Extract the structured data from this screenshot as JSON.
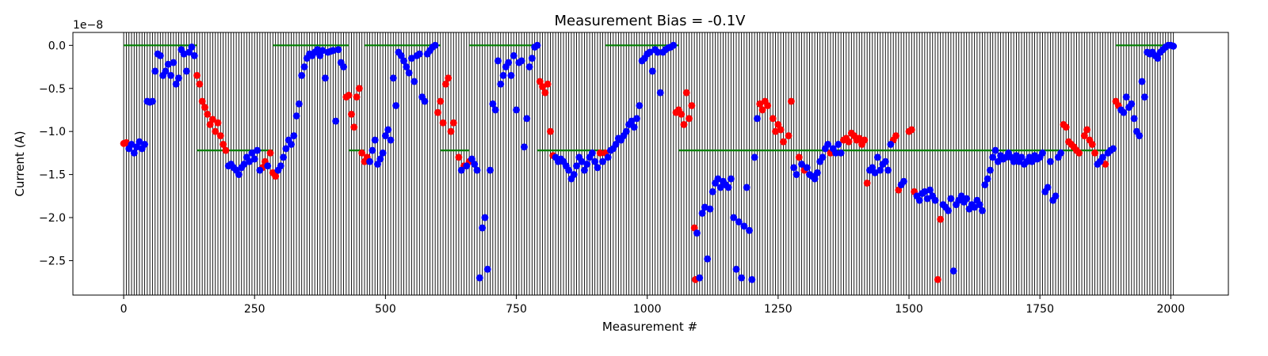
{
  "chart_data": {
    "type": "scatter",
    "title": "Measurement Bias = -0.1V",
    "xlabel": "Measurement #",
    "ylabel": "Current (A)",
    "y_offset_label": "1e−8",
    "xlim": [
      -97,
      2110
    ],
    "ylim": [
      -2.9,
      0.15
    ],
    "x_ticks": [
      0,
      250,
      500,
      750,
      1000,
      1250,
      1500,
      1750,
      2000
    ],
    "y_ticks": [
      0.0,
      -0.5,
      -1.0,
      -1.5,
      -2.0,
      -2.5
    ],
    "x_tick_labels": [
      "0",
      "250",
      "500",
      "750",
      "1000",
      "1250",
      "1500",
      "1750",
      "2000"
    ],
    "y_tick_labels": [
      "0.0",
      "−0.5",
      "−1.0",
      "−1.5",
      "−2.0",
      "−2.5"
    ],
    "vertical_lines": {
      "start": 0,
      "end": 2005,
      "step": 5,
      "color": "#000000"
    },
    "colors": {
      "red": "#ff0000",
      "blue": "#0000ff",
      "green": "#008000"
    },
    "green_segments": [
      {
        "x": [
          0,
          140
        ],
        "y": 0.0
      },
      {
        "x": [
          140,
          285
        ],
        "y": -1.22
      },
      {
        "x": [
          285,
          430
        ],
        "y": 0.0
      },
      {
        "x": [
          430,
          460
        ],
        "y": -1.22
      },
      {
        "x": [
          460,
          605
        ],
        "y": 0.0
      },
      {
        "x": [
          605,
          660
        ],
        "y": -1.22
      },
      {
        "x": [
          660,
          790
        ],
        "y": 0.0
      },
      {
        "x": [
          790,
          920
        ],
        "y": -1.22
      },
      {
        "x": [
          920,
          1060
        ],
        "y": 0.0
      },
      {
        "x": [
          1060,
          1895
        ],
        "y": -1.22
      },
      {
        "x": [
          1895,
          2000
        ],
        "y": 0.0
      }
    ],
    "red_points": [
      [
        0,
        -1.14
      ],
      [
        5,
        -1.13
      ],
      [
        10,
        -1.16
      ],
      [
        140,
        -0.35
      ],
      [
        145,
        -0.45
      ],
      [
        150,
        -0.65
      ],
      [
        155,
        -0.72
      ],
      [
        160,
        -0.8
      ],
      [
        165,
        -0.92
      ],
      [
        170,
        -0.86
      ],
      [
        175,
        -1.0
      ],
      [
        180,
        -0.9
      ],
      [
        185,
        -1.05
      ],
      [
        190,
        -1.15
      ],
      [
        195,
        -1.22
      ],
      [
        265,
        -1.42
      ],
      [
        270,
        -1.35
      ],
      [
        280,
        -1.25
      ],
      [
        285,
        -1.48
      ],
      [
        290,
        -1.52
      ],
      [
        425,
        -0.6
      ],
      [
        430,
        -0.58
      ],
      [
        435,
        -0.8
      ],
      [
        440,
        -0.95
      ],
      [
        445,
        -0.6
      ],
      [
        450,
        -0.5
      ],
      [
        455,
        -1.25
      ],
      [
        460,
        -1.35
      ],
      [
        465,
        -1.3
      ],
      [
        600,
        -0.78
      ],
      [
        605,
        -0.65
      ],
      [
        610,
        -0.9
      ],
      [
        615,
        -0.45
      ],
      [
        620,
        -0.38
      ],
      [
        625,
        -1.0
      ],
      [
        630,
        -0.9
      ],
      [
        640,
        -1.3
      ],
      [
        650,
        -1.4
      ],
      [
        660,
        -1.35
      ],
      [
        795,
        -0.42
      ],
      [
        800,
        -0.48
      ],
      [
        805,
        -0.55
      ],
      [
        810,
        -0.45
      ],
      [
        815,
        -1.0
      ],
      [
        820,
        -1.28
      ],
      [
        910,
        -1.25
      ],
      [
        920,
        -1.25
      ],
      [
        1055,
        -0.78
      ],
      [
        1060,
        -0.75
      ],
      [
        1065,
        -0.8
      ],
      [
        1070,
        -0.92
      ],
      [
        1075,
        -0.55
      ],
      [
        1080,
        -0.85
      ],
      [
        1085,
        -0.7
      ],
      [
        1090,
        -2.12
      ],
      [
        1092,
        -2.72
      ],
      [
        1215,
        -0.68
      ],
      [
        1220,
        -0.75
      ],
      [
        1225,
        -0.65
      ],
      [
        1230,
        -0.7
      ],
      [
        1240,
        -0.85
      ],
      [
        1245,
        -1.0
      ],
      [
        1250,
        -0.92
      ],
      [
        1255,
        -0.98
      ],
      [
        1260,
        -1.12
      ],
      [
        1270,
        -1.05
      ],
      [
        1275,
        -0.65
      ],
      [
        1290,
        -1.3
      ],
      [
        1300,
        -1.45
      ],
      [
        1350,
        -1.25
      ],
      [
        1375,
        -1.1
      ],
      [
        1380,
        -1.08
      ],
      [
        1385,
        -1.12
      ],
      [
        1390,
        -1.02
      ],
      [
        1395,
        -1.05
      ],
      [
        1400,
        -1.1
      ],
      [
        1405,
        -1.08
      ],
      [
        1410,
        -1.15
      ],
      [
        1415,
        -1.1
      ],
      [
        1420,
        -1.6
      ],
      [
        1470,
        -1.1
      ],
      [
        1475,
        -1.05
      ],
      [
        1480,
        -1.68
      ],
      [
        1500,
        -1.0
      ],
      [
        1505,
        -0.98
      ],
      [
        1510,
        -1.7
      ],
      [
        1555,
        -2.72
      ],
      [
        1560,
        -2.02
      ],
      [
        1795,
        -0.92
      ],
      [
        1800,
        -0.95
      ],
      [
        1805,
        -1.12
      ],
      [
        1810,
        -1.15
      ],
      [
        1815,
        -1.18
      ],
      [
        1820,
        -1.22
      ],
      [
        1825,
        -1.25
      ],
      [
        1835,
        -1.05
      ],
      [
        1840,
        -0.98
      ],
      [
        1845,
        -1.1
      ],
      [
        1850,
        -1.15
      ],
      [
        1855,
        -1.25
      ],
      [
        1875,
        -1.38
      ],
      [
        1895,
        -0.65
      ],
      [
        1900,
        -0.7
      ]
    ],
    "blue_points": [
      [
        10,
        -1.2
      ],
      [
        15,
        -1.15
      ],
      [
        20,
        -1.25
      ],
      [
        25,
        -1.18
      ],
      [
        30,
        -1.12
      ],
      [
        35,
        -1.2
      ],
      [
        40,
        -1.15
      ],
      [
        45,
        -0.65
      ],
      [
        50,
        -0.66
      ],
      [
        55,
        -0.65
      ],
      [
        60,
        -0.3
      ],
      [
        65,
        -0.1
      ],
      [
        70,
        -0.12
      ],
      [
        75,
        -0.35
      ],
      [
        80,
        -0.3
      ],
      [
        85,
        -0.22
      ],
      [
        90,
        -0.35
      ],
      [
        95,
        -0.2
      ],
      [
        100,
        -0.45
      ],
      [
        105,
        -0.38
      ],
      [
        110,
        -0.05
      ],
      [
        115,
        -0.1
      ],
      [
        120,
        -0.3
      ],
      [
        125,
        -0.08
      ],
      [
        130,
        -0.02
      ],
      [
        135,
        -0.12
      ],
      [
        200,
        -1.4
      ],
      [
        205,
        -1.38
      ],
      [
        210,
        -1.42
      ],
      [
        215,
        -1.45
      ],
      [
        220,
        -1.5
      ],
      [
        225,
        -1.42
      ],
      [
        230,
        -1.38
      ],
      [
        235,
        -1.3
      ],
      [
        240,
        -1.35
      ],
      [
        245,
        -1.25
      ],
      [
        250,
        -1.32
      ],
      [
        255,
        -1.22
      ],
      [
        260,
        -1.45
      ],
      [
        275,
        -1.4
      ],
      [
        295,
        -1.45
      ],
      [
        300,
        -1.4
      ],
      [
        305,
        -1.3
      ],
      [
        310,
        -1.2
      ],
      [
        315,
        -1.1
      ],
      [
        320,
        -1.15
      ],
      [
        325,
        -1.05
      ],
      [
        330,
        -0.82
      ],
      [
        335,
        -0.68
      ],
      [
        340,
        -0.35
      ],
      [
        345,
        -0.25
      ],
      [
        350,
        -0.15
      ],
      [
        355,
        -0.1
      ],
      [
        360,
        -0.12
      ],
      [
        365,
        -0.08
      ],
      [
        370,
        -0.05
      ],
      [
        375,
        -0.12
      ],
      [
        380,
        -0.06
      ],
      [
        385,
        -0.38
      ],
      [
        390,
        -0.08
      ],
      [
        395,
        -0.07
      ],
      [
        400,
        -0.06
      ],
      [
        405,
        -0.88
      ],
      [
        410,
        -0.05
      ],
      [
        415,
        -0.2
      ],
      [
        420,
        -0.25
      ],
      [
        470,
        -1.35
      ],
      [
        475,
        -1.22
      ],
      [
        480,
        -1.1
      ],
      [
        485,
        -1.38
      ],
      [
        490,
        -1.32
      ],
      [
        495,
        -1.25
      ],
      [
        500,
        -1.05
      ],
      [
        505,
        -0.98
      ],
      [
        510,
        -1.1
      ],
      [
        515,
        -0.38
      ],
      [
        520,
        -0.7
      ],
      [
        525,
        -0.08
      ],
      [
        530,
        -0.12
      ],
      [
        535,
        -0.18
      ],
      [
        540,
        -0.25
      ],
      [
        545,
        -0.32
      ],
      [
        550,
        -0.15
      ],
      [
        555,
        -0.42
      ],
      [
        560,
        -0.12
      ],
      [
        565,
        -0.1
      ],
      [
        570,
        -0.6
      ],
      [
        575,
        -0.65
      ],
      [
        580,
        -0.1
      ],
      [
        585,
        -0.06
      ],
      [
        590,
        -0.02
      ],
      [
        595,
        0.0
      ],
      [
        645,
        -1.45
      ],
      [
        655,
        -1.4
      ],
      [
        665,
        -1.32
      ],
      [
        670,
        -1.38
      ],
      [
        675,
        -1.45
      ],
      [
        680,
        -2.7
      ],
      [
        685,
        -2.12
      ],
      [
        690,
        -2.0
      ],
      [
        695,
        -2.6
      ],
      [
        700,
        -1.45
      ],
      [
        705,
        -0.68
      ],
      [
        710,
        -0.75
      ],
      [
        715,
        -0.18
      ],
      [
        720,
        -0.45
      ],
      [
        725,
        -0.35
      ],
      [
        730,
        -0.25
      ],
      [
        735,
        -0.2
      ],
      [
        740,
        -0.35
      ],
      [
        745,
        -0.12
      ],
      [
        750,
        -0.75
      ],
      [
        755,
        -0.2
      ],
      [
        760,
        -0.18
      ],
      [
        765,
        -1.18
      ],
      [
        770,
        -0.85
      ],
      [
        775,
        -0.25
      ],
      [
        780,
        -0.15
      ],
      [
        785,
        -0.02
      ],
      [
        790,
        0.0
      ],
      [
        825,
        -1.3
      ],
      [
        830,
        -1.35
      ],
      [
        835,
        -1.32
      ],
      [
        840,
        -1.35
      ],
      [
        845,
        -1.4
      ],
      [
        850,
        -1.45
      ],
      [
        855,
        -1.55
      ],
      [
        860,
        -1.5
      ],
      [
        865,
        -1.4
      ],
      [
        870,
        -1.3
      ],
      [
        875,
        -1.35
      ],
      [
        880,
        -1.45
      ],
      [
        885,
        -1.38
      ],
      [
        890,
        -1.3
      ],
      [
        895,
        -1.25
      ],
      [
        900,
        -1.35
      ],
      [
        905,
        -1.42
      ],
      [
        915,
        -1.35
      ],
      [
        925,
        -1.3
      ],
      [
        930,
        -1.22
      ],
      [
        935,
        -1.2
      ],
      [
        940,
        -1.15
      ],
      [
        945,
        -1.08
      ],
      [
        950,
        -1.1
      ],
      [
        955,
        -1.05
      ],
      [
        960,
        -1.0
      ],
      [
        965,
        -0.92
      ],
      [
        970,
        -0.88
      ],
      [
        975,
        -0.95
      ],
      [
        980,
        -0.85
      ],
      [
        985,
        -0.7
      ],
      [
        990,
        -0.18
      ],
      [
        995,
        -0.15
      ],
      [
        1000,
        -0.1
      ],
      [
        1005,
        -0.08
      ],
      [
        1010,
        -0.3
      ],
      [
        1015,
        -0.05
      ],
      [
        1020,
        -0.08
      ],
      [
        1025,
        -0.55
      ],
      [
        1030,
        -0.08
      ],
      [
        1035,
        -0.05
      ],
      [
        1040,
        -0.03
      ],
      [
        1045,
        -0.02
      ],
      [
        1050,
        0.0
      ],
      [
        1095,
        -2.18
      ],
      [
        1100,
        -2.7
      ],
      [
        1105,
        -1.95
      ],
      [
        1110,
        -1.88
      ],
      [
        1115,
        -2.48
      ],
      [
        1120,
        -1.9
      ],
      [
        1125,
        -1.7
      ],
      [
        1130,
        -1.6
      ],
      [
        1135,
        -1.55
      ],
      [
        1140,
        -1.65
      ],
      [
        1145,
        -1.58
      ],
      [
        1150,
        -1.62
      ],
      [
        1155,
        -1.65
      ],
      [
        1160,
        -1.55
      ],
      [
        1165,
        -2.0
      ],
      [
        1170,
        -2.6
      ],
      [
        1175,
        -2.05
      ],
      [
        1180,
        -2.7
      ],
      [
        1185,
        -2.1
      ],
      [
        1190,
        -1.65
      ],
      [
        1195,
        -2.15
      ],
      [
        1200,
        -2.72
      ],
      [
        1205,
        -1.3
      ],
      [
        1210,
        -0.85
      ],
      [
        1280,
        -1.42
      ],
      [
        1285,
        -1.5
      ],
      [
        1295,
        -1.38
      ],
      [
        1305,
        -1.42
      ],
      [
        1310,
        -1.5
      ],
      [
        1315,
        -1.52
      ],
      [
        1320,
        -1.55
      ],
      [
        1325,
        -1.48
      ],
      [
        1330,
        -1.35
      ],
      [
        1335,
        -1.3
      ],
      [
        1340,
        -1.2
      ],
      [
        1345,
        -1.15
      ],
      [
        1355,
        -1.2
      ],
      [
        1360,
        -1.25
      ],
      [
        1365,
        -1.15
      ],
      [
        1370,
        -1.25
      ],
      [
        1425,
        -1.45
      ],
      [
        1430,
        -1.42
      ],
      [
        1435,
        -1.48
      ],
      [
        1440,
        -1.3
      ],
      [
        1445,
        -1.45
      ],
      [
        1450,
        -1.38
      ],
      [
        1455,
        -1.35
      ],
      [
        1460,
        -1.45
      ],
      [
        1465,
        -1.15
      ],
      [
        1485,
        -1.62
      ],
      [
        1490,
        -1.58
      ],
      [
        1515,
        -1.75
      ],
      [
        1520,
        -1.8
      ],
      [
        1525,
        -1.72
      ],
      [
        1530,
        -1.7
      ],
      [
        1535,
        -1.78
      ],
      [
        1540,
        -1.68
      ],
      [
        1545,
        -1.75
      ],
      [
        1550,
        -1.8
      ],
      [
        1565,
        -1.85
      ],
      [
        1570,
        -1.88
      ],
      [
        1575,
        -1.92
      ],
      [
        1580,
        -1.78
      ],
      [
        1585,
        -2.62
      ],
      [
        1590,
        -1.85
      ],
      [
        1595,
        -1.8
      ],
      [
        1600,
        -1.75
      ],
      [
        1605,
        -1.82
      ],
      [
        1610,
        -1.78
      ],
      [
        1615,
        -1.9
      ],
      [
        1620,
        -1.85
      ],
      [
        1625,
        -1.88
      ],
      [
        1630,
        -1.8
      ],
      [
        1635,
        -1.85
      ],
      [
        1640,
        -1.92
      ],
      [
        1645,
        -1.62
      ],
      [
        1650,
        -1.55
      ],
      [
        1655,
        -1.45
      ],
      [
        1660,
        -1.3
      ],
      [
        1665,
        -1.22
      ],
      [
        1670,
        -1.35
      ],
      [
        1675,
        -1.28
      ],
      [
        1680,
        -1.32
      ],
      [
        1685,
        -1.3
      ],
      [
        1690,
        -1.25
      ],
      [
        1695,
        -1.3
      ],
      [
        1700,
        -1.35
      ],
      [
        1705,
        -1.28
      ],
      [
        1710,
        -1.35
      ],
      [
        1715,
        -1.3
      ],
      [
        1720,
        -1.38
      ],
      [
        1725,
        -1.35
      ],
      [
        1730,
        -1.3
      ],
      [
        1735,
        -1.35
      ],
      [
        1740,
        -1.28
      ],
      [
        1745,
        -1.32
      ],
      [
        1750,
        -1.3
      ],
      [
        1755,
        -1.25
      ],
      [
        1760,
        -1.7
      ],
      [
        1765,
        -1.65
      ],
      [
        1770,
        -1.35
      ],
      [
        1775,
        -1.8
      ],
      [
        1780,
        -1.75
      ],
      [
        1785,
        -1.3
      ],
      [
        1790,
        -1.25
      ],
      [
        1860,
        -1.38
      ],
      [
        1865,
        -1.35
      ],
      [
        1870,
        -1.3
      ],
      [
        1880,
        -1.25
      ],
      [
        1885,
        -1.22
      ],
      [
        1890,
        -1.2
      ],
      [
        1905,
        -0.75
      ],
      [
        1910,
        -0.78
      ],
      [
        1915,
        -0.6
      ],
      [
        1920,
        -0.72
      ],
      [
        1925,
        -0.68
      ],
      [
        1930,
        -0.85
      ],
      [
        1935,
        -1.0
      ],
      [
        1940,
        -1.05
      ],
      [
        1945,
        -0.42
      ],
      [
        1950,
        -0.6
      ],
      [
        1955,
        -0.08
      ],
      [
        1960,
        -0.1
      ],
      [
        1965,
        -0.08
      ],
      [
        1970,
        -0.12
      ],
      [
        1975,
        -0.15
      ],
      [
        1980,
        -0.08
      ],
      [
        1985,
        -0.05
      ],
      [
        1990,
        -0.02
      ],
      [
        1995,
        0.0
      ],
      [
        2000,
        0.0
      ],
      [
        2005,
        -0.01
      ]
    ]
  }
}
